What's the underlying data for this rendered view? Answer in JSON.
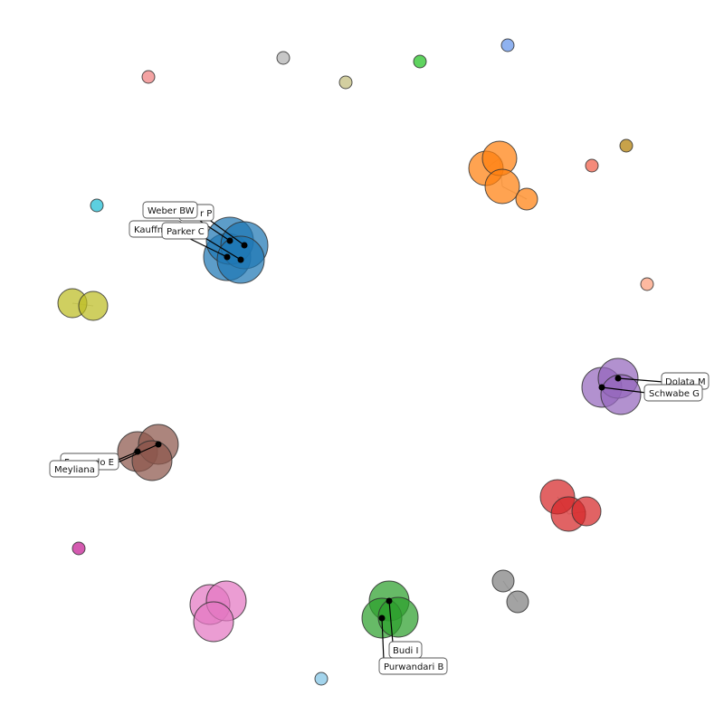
{
  "clusters": [
    {
      "id": "blue",
      "color": "#1f77b4",
      "opacity": 0.72
    },
    {
      "id": "orange",
      "color": "#ff7f0e",
      "opacity": 0.72
    },
    {
      "id": "purple",
      "color": "#9467bd",
      "opacity": 0.72
    },
    {
      "id": "brown",
      "color": "#8c564b",
      "opacity": 0.72
    },
    {
      "id": "red",
      "color": "#d62728",
      "opacity": 0.72
    },
    {
      "id": "green",
      "color": "#2ca02c",
      "opacity": 0.72
    },
    {
      "id": "pink",
      "color": "#e377c2",
      "opacity": 0.72
    },
    {
      "id": "olive",
      "color": "#bcbd22",
      "opacity": 0.72
    },
    {
      "id": "gray",
      "color": "#7f7f7f",
      "opacity": 0.72
    }
  ],
  "isolated_node_colors": [
    "#f4a3a3",
    "#c7c7c7",
    "#d3cfa0",
    "#5fd35f",
    "#8fb2f0",
    "#c8a24a",
    "#f58a7a",
    "#5ccfe0",
    "#fdb9a0",
    "#d45ab0",
    "#a3d4ec"
  ],
  "labels": [
    {
      "cluster": "blue",
      "text": "Weber BW"
    },
    {
      "cluster": "blue",
      "text": "r P"
    },
    {
      "cluster": "blue",
      "text": "Kauffm"
    },
    {
      "cluster": "blue",
      "text": "Parker C"
    },
    {
      "cluster": "purple",
      "text": "Dolata M"
    },
    {
      "cluster": "purple",
      "text": "Schwabe G"
    },
    {
      "cluster": "brown",
      "text": "F"
    },
    {
      "cluster": "brown",
      "text": "do E"
    },
    {
      "cluster": "brown",
      "text": "Meyliana"
    },
    {
      "cluster": "green",
      "text": "Budi I"
    },
    {
      "cluster": "green",
      "text": "Purwandari B"
    }
  ]
}
